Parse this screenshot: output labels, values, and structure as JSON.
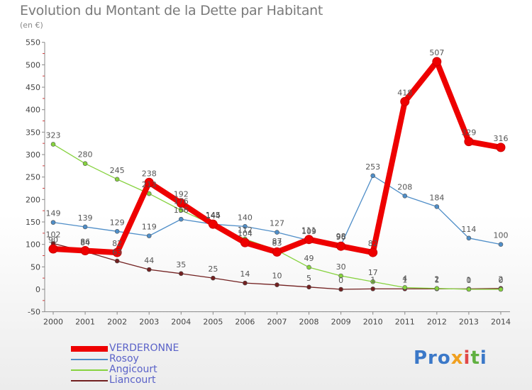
{
  "title": "Evolution du Montant de la Dette par Habitant",
  "unit": "(en €)",
  "logo": "Proxiti",
  "chart_data": {
    "type": "line",
    "x": [
      2000,
      2001,
      2002,
      2003,
      2004,
      2005,
      2006,
      2007,
      2008,
      2009,
      2010,
      2011,
      2012,
      2013,
      2014
    ],
    "ylim": [
      -50,
      550
    ],
    "yticks": [
      -50,
      0,
      50,
      100,
      150,
      200,
      250,
      300,
      350,
      400,
      450,
      500,
      550
    ],
    "grid": false,
    "legend_position": "bottom-left",
    "series": [
      {
        "name": "VERDERONNE",
        "color": "#ee0000",
        "values": [
          90,
          86,
          82,
          238,
          192,
          145,
          104,
          83,
          111,
          96,
          82,
          418,
          507,
          329,
          316
        ]
      },
      {
        "name": "Rosoy",
        "color": "#4f8ec8",
        "values": [
          149,
          139,
          129,
          119,
          156,
          145,
          140,
          127,
          109,
          98,
          253,
          208,
          184,
          114,
          100
        ]
      },
      {
        "name": "Angicourt",
        "color": "#86d23e",
        "values": [
          323,
          280,
          245,
          213,
          176,
          144,
          112,
          87,
          49,
          30,
          17,
          4,
          2,
          0,
          0
        ]
      },
      {
        "name": "Liancourt",
        "color": "#722020",
        "values": [
          102,
          84,
          63,
          44,
          35,
          25,
          14,
          10,
          5,
          0,
          1,
          1,
          1,
          1,
          2
        ]
      }
    ],
    "labels": [
      {
        "series": 0,
        "text": [
          "90",
          "86",
          "82",
          "238",
          "192",
          "145",
          "104",
          "83",
          "111",
          "96",
          "82",
          "418",
          "507",
          "329",
          "316"
        ]
      },
      {
        "series": 1,
        "text": [
          "149",
          "139",
          "129",
          "119",
          "156",
          "145",
          "140",
          "127",
          "109",
          "98",
          "253",
          "208",
          "184",
          "114",
          "100"
        ]
      },
      {
        "series": 2,
        "text": [
          "323",
          "280",
          "245",
          "213",
          "176",
          "144",
          "112",
          "87",
          "49",
          "30",
          "17",
          "4",
          "2",
          "0",
          "0"
        ]
      },
      {
        "series": 3,
        "text": [
          "102",
          "84",
          "63",
          "44",
          "35",
          "25",
          "14",
          "10",
          "5",
          "0",
          "1",
          "1",
          "1",
          "1",
          "2"
        ]
      }
    ]
  }
}
